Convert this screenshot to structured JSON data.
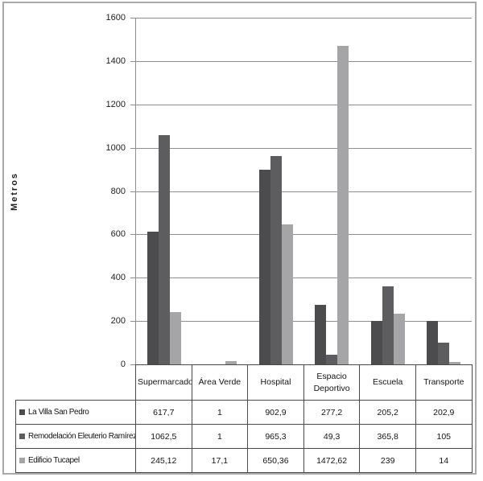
{
  "figure": {
    "background": "#ffffff",
    "outer_border_color": "#a9a9a9",
    "gridline_color": "#8e8e90",
    "table_border_color": "#4a4a4a"
  },
  "chart_data": {
    "type": "bar",
    "title": "",
    "xlabel": "",
    "ylabel": "Metros",
    "ylim": [
      0,
      1600
    ],
    "ytick_step": 200,
    "ytick_labels": [
      "0",
      "200",
      "400",
      "600",
      "800",
      "1000",
      "1200",
      "1400",
      "1600"
    ],
    "grid": true,
    "legend_position": "table-left",
    "categories": [
      "Supermarcado",
      "Área Verde",
      "Hospital",
      "Espacio Deportivo",
      "Escuela",
      "Transporte"
    ],
    "series": [
      {
        "name": "La Villa San Pedro",
        "color": "#4c4c4e",
        "values": [
          617.7,
          1,
          902.9,
          277.2,
          205.2,
          202.9
        ],
        "display": [
          "617,7",
          "1",
          "902,9",
          "277,2",
          "205,2",
          "202,9"
        ]
      },
      {
        "name": "Remodelación Eleuterio Ramírez",
        "color": "#5d5d5f",
        "values": [
          1062.5,
          1,
          965.3,
          49.3,
          365.8,
          105
        ],
        "display": [
          "1062,5",
          "1",
          "965,3",
          "49,3",
          "365,8",
          "105"
        ]
      },
      {
        "name": "Edificio Tucapel",
        "color": "#a5a5a7",
        "values": [
          245.12,
          17.1,
          650.36,
          1472.62,
          239,
          14
        ],
        "display": [
          "245,12",
          "17,1",
          "650,36",
          "1472,62",
          "239",
          "14"
        ]
      }
    ]
  }
}
